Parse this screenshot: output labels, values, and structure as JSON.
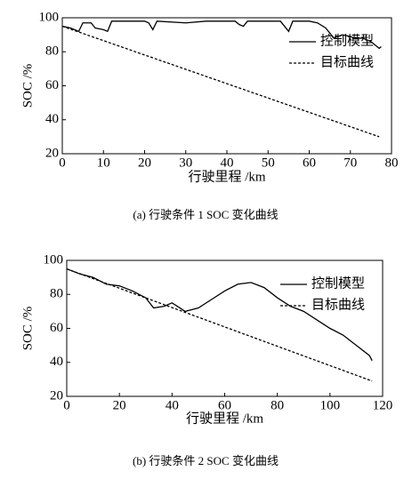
{
  "chart_data": [
    {
      "type": "line",
      "caption": "(a) 行驶条件 1 SOC 变化曲线",
      "xlabel": "行驶里程 /km",
      "ylabel": "SOC /%",
      "xlim": [
        0,
        80
      ],
      "ylim": [
        20,
        100
      ],
      "xticks": [
        0,
        10,
        20,
        30,
        40,
        50,
        60,
        70,
        80
      ],
      "yticks": [
        20,
        40,
        60,
        80,
        100
      ],
      "legend": "upper right",
      "grid": false,
      "series": [
        {
          "name": "控制模型",
          "color": "#000000",
          "linestyle": "solid",
          "x": [
            0,
            2,
            4,
            5,
            7,
            8,
            10,
            11,
            12,
            15,
            20,
            21,
            22,
            23,
            30,
            35,
            42,
            43,
            44,
            45,
            50,
            53,
            54,
            55,
            56,
            60,
            62,
            64,
            66,
            68,
            70,
            71,
            73,
            75,
            76,
            77,
            77.5
          ],
          "values": [
            95,
            94,
            92,
            97,
            97,
            94,
            93,
            92,
            98,
            98,
            98,
            97,
            93,
            98,
            97,
            98,
            98,
            96,
            95,
            98,
            98,
            98,
            95,
            92,
            98,
            98,
            97,
            94,
            88,
            90,
            89,
            88,
            88,
            86,
            84,
            82,
            83
          ]
        },
        {
          "name": "目标曲线",
          "color": "#000000",
          "linestyle": "dashed",
          "x": [
            0,
            77
          ],
          "values": [
            95,
            30
          ]
        }
      ]
    },
    {
      "type": "line",
      "caption": "(b) 行驶条件 2 SOC 变化曲线",
      "xlabel": "行驶里程 /km",
      "ylabel": "SOC /%",
      "xlim": [
        0,
        120
      ],
      "ylim": [
        20,
        100
      ],
      "xticks": [
        0,
        20,
        40,
        60,
        80,
        100,
        120
      ],
      "yticks": [
        20,
        40,
        60,
        80,
        100
      ],
      "legend": "upper right",
      "grid": false,
      "series": [
        {
          "name": "控制模型",
          "color": "#000000",
          "linestyle": "solid",
          "x": [
            0,
            5,
            10,
            15,
            20,
            25,
            30,
            33,
            37,
            40,
            43,
            45,
            50,
            55,
            60,
            65,
            70,
            75,
            80,
            85,
            90,
            95,
            100,
            105,
            110,
            115,
            116
          ],
          "values": [
            95,
            92,
            90,
            86,
            85,
            82,
            78,
            72,
            73,
            75,
            72,
            70,
            72,
            77,
            82,
            86,
            87,
            84,
            78,
            73,
            70,
            65,
            60,
            56,
            50,
            44,
            41
          ]
        },
        {
          "name": "目标曲线",
          "color": "#000000",
          "linestyle": "dashed",
          "x": [
            0,
            116
          ],
          "values": [
            95,
            29
          ]
        }
      ]
    }
  ]
}
